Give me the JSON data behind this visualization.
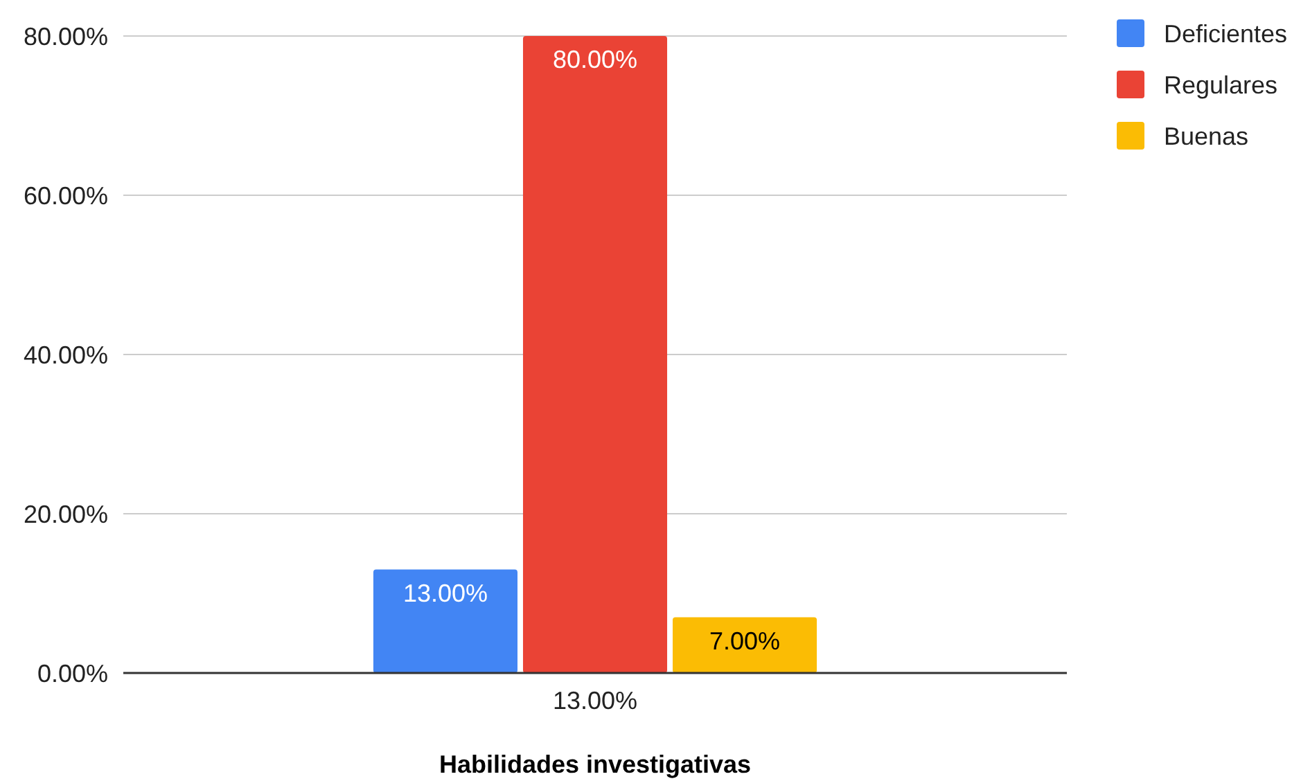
{
  "chart_data": {
    "type": "bar",
    "xlabel": "Habilidades investigativas",
    "categories": [
      "13.00%"
    ],
    "series": [
      {
        "name": "Deficientes",
        "color": "#4285f4",
        "values": [
          13
        ],
        "value_labels": [
          "13.00%"
        ]
      },
      {
        "name": "Regulares",
        "color": "#ea4335",
        "values": [
          80
        ],
        "value_labels": [
          "80.00%"
        ]
      },
      {
        "name": "Buenas",
        "color": "#fbbc04",
        "values": [
          7
        ],
        "value_labels": [
          "7.00%"
        ]
      }
    ],
    "ylim": [
      0,
      80
    ],
    "yticks": [
      {
        "value": 0,
        "label": "0.00%"
      },
      {
        "value": 20,
        "label": "20.00%"
      },
      {
        "value": 40,
        "label": "40.00%"
      },
      {
        "value": 60,
        "label": "60.00%"
      },
      {
        "value": 80,
        "label": "80.00%"
      }
    ],
    "grid": "y",
    "legend": "top right"
  }
}
